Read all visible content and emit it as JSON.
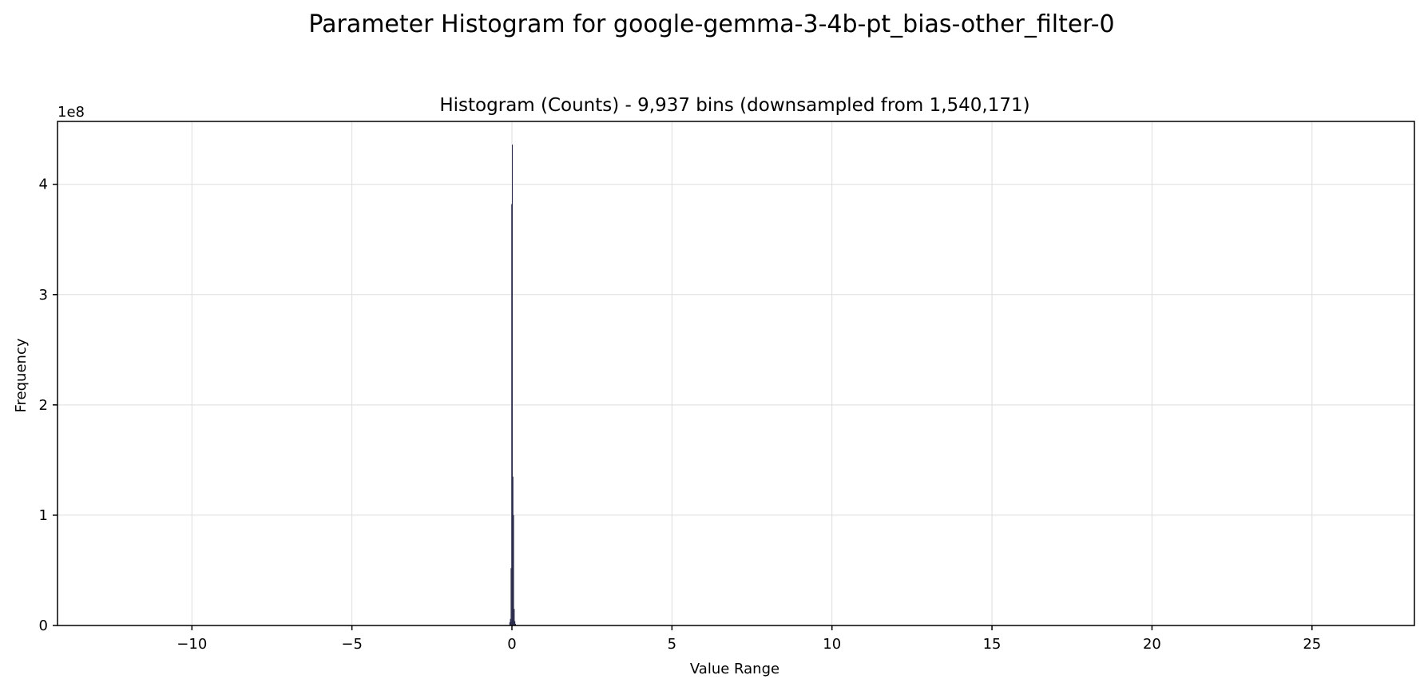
{
  "chart_data": {
    "type": "bar",
    "title": "Parameter Histogram for google-gemma-3-4b-pt_bias-other_filter-0",
    "subtitle": "Histogram (Counts) - 9,937 bins (downsampled from 1,540,171)",
    "xlabel": "Value Range",
    "ylabel": "Frequency",
    "y_offset_label": "1e8",
    "xlim": [
      -14.2,
      28.2
    ],
    "ylim": [
      0,
      457000000
    ],
    "xticks": [
      -10,
      -5,
      0,
      5,
      10,
      15,
      20,
      25
    ],
    "xtick_labels": [
      "−10",
      "−5",
      "0",
      "5",
      "10",
      "15",
      "20",
      "25"
    ],
    "yticks": [
      0,
      100000000,
      200000000,
      300000000,
      400000000
    ],
    "ytick_labels": [
      "0",
      "1",
      "2",
      "3",
      "4"
    ],
    "grid": true,
    "bar_color": "#2b2b4b",
    "bars": [
      {
        "x": -0.08,
        "width": 0.02,
        "value": 3000000
      },
      {
        "x": -0.06,
        "width": 0.02,
        "value": 6000000
      },
      {
        "x": -0.04,
        "width": 0.02,
        "value": 52000000
      },
      {
        "x": -0.02,
        "width": 0.02,
        "value": 382000000
      },
      {
        "x": 0.0,
        "width": 0.02,
        "value": 436000000
      },
      {
        "x": 0.02,
        "width": 0.02,
        "value": 135000000
      },
      {
        "x": 0.04,
        "width": 0.02,
        "value": 100000000
      },
      {
        "x": 0.06,
        "width": 0.02,
        "value": 15000000
      },
      {
        "x": 0.08,
        "width": 0.02,
        "value": 4000000
      },
      {
        "x": 0.1,
        "width": 0.02,
        "value": 1500000
      }
    ]
  }
}
